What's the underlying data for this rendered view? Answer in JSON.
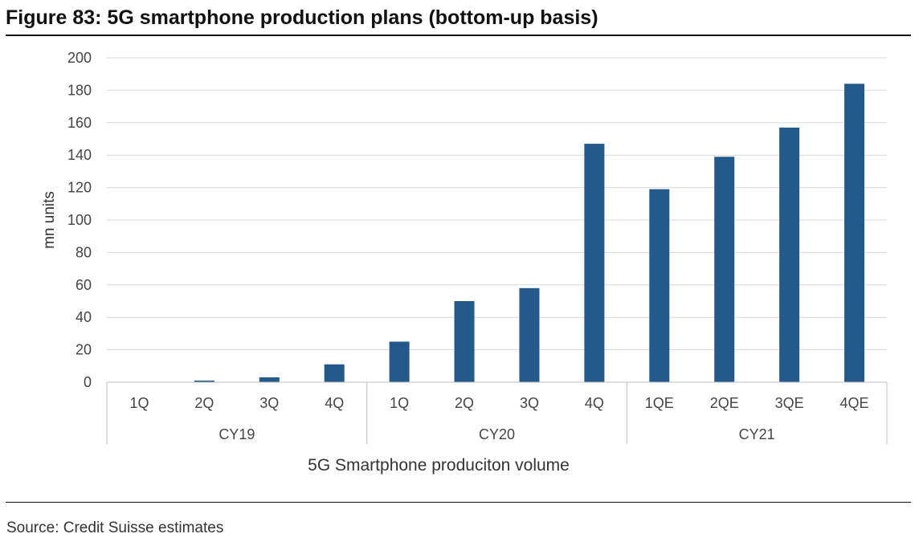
{
  "figure": {
    "title": "Figure 83: 5G smartphone production plans (bottom-up basis)",
    "source": "Source: Credit Suisse estimates"
  },
  "chart_data": {
    "type": "bar",
    "xlabel": "5G Smartphone produciton volume",
    "ylabel": "mn units",
    "ylim": [
      0,
      200
    ],
    "y_ticks": [
      0,
      20,
      40,
      60,
      80,
      100,
      120,
      140,
      160,
      180,
      200
    ],
    "grid": true,
    "legend": "none",
    "bar_color": "#245a8b",
    "categories": [
      "1Q",
      "2Q",
      "3Q",
      "4Q",
      "1Q",
      "2Q",
      "3Q",
      "4Q",
      "1QE",
      "2QE",
      "3QE",
      "4QE"
    ],
    "groups": [
      {
        "label": "CY19",
        "count": 4
      },
      {
        "label": "CY20",
        "count": 4
      },
      {
        "label": "CY21",
        "count": 4
      }
    ],
    "values": [
      0,
      1,
      3,
      11,
      25,
      50,
      58,
      147,
      119,
      139,
      157,
      184
    ]
  }
}
